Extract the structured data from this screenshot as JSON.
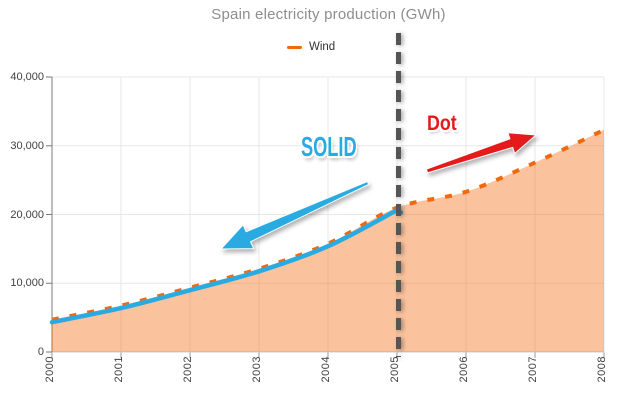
{
  "title": "Spain electricity production (GWh)",
  "legend": {
    "label": "Wind"
  },
  "annotations": {
    "solid_label": "SOLID",
    "dot_label": "Dot"
  },
  "colors": {
    "wind_line": "#F2690D",
    "area_fill": "rgba(242,105,13,0.40)",
    "solid_overlay_blue": "#29ABE2",
    "dot_arrow_red": "#E51A1A",
    "divider_gray": "#555555",
    "grid": "#E7E7E7",
    "x_axis_line": "#CFCFCF",
    "y_axis_line": "#7A7A7A",
    "x_tick": "#999999",
    "label_text": "#404040",
    "title_text": "#8E8E8E"
  },
  "y_axis": {
    "tick_values": [
      0,
      10000,
      20000,
      30000,
      40000
    ],
    "tick_labels": [
      "0",
      "10,000",
      "20,000",
      "30,000",
      "40,000"
    ]
  },
  "x_axis": {
    "tick_labels": [
      "2000",
      "2001",
      "2002",
      "2003",
      "2004",
      "2005",
      "2006",
      "2007",
      "2008"
    ]
  },
  "chart_data": {
    "type": "area",
    "title": "Spain electricity production (GWh)",
    "x": [
      2000,
      2001,
      2002,
      2003,
      2004,
      2005,
      2006,
      2007,
      2008
    ],
    "series": [
      {
        "name": "Wind",
        "values": [
          4700,
          6750,
          9350,
          12100,
          15750,
          21000,
          23300,
          27550,
          32300
        ]
      }
    ],
    "xlim": [
      2000,
      2008
    ],
    "ylim": [
      0,
      40000
    ],
    "grid": true,
    "legend_position": "top-center",
    "divider_x": 2005,
    "style_before_divider": "solid (highlighted with blue line, annotated SOLID)",
    "style_after_divider": "dotted orange (annotated Dot)"
  }
}
